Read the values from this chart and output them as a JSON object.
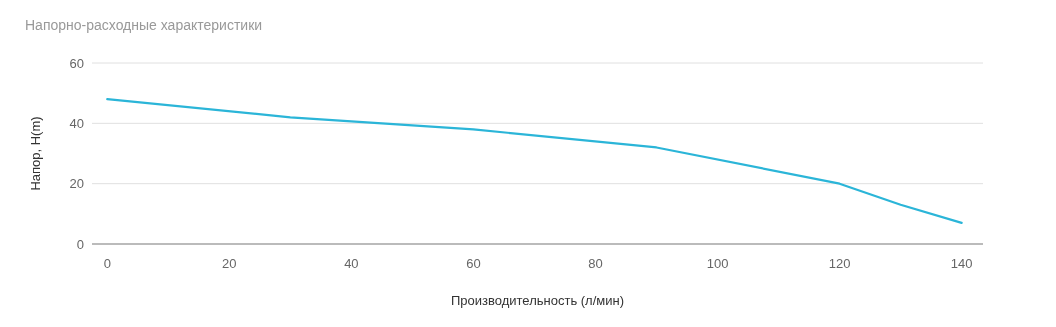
{
  "chart_data": {
    "type": "line",
    "title": "Напорно-расходные характеристики",
    "xlabel": "Производительность (л/мин)",
    "ylabel": "Напор, H(m)",
    "x": [
      0,
      30,
      60,
      90,
      120,
      130,
      140
    ],
    "series": [
      {
        "color": "#2bb5d8",
        "values": [
          48,
          42,
          38,
          32,
          20,
          13,
          7
        ]
      }
    ],
    "xlim": [
      -2.5,
      143.5
    ],
    "xticks": [
      0,
      20,
      40,
      60,
      80,
      100,
      120,
      140
    ],
    "ylim": [
      0,
      60
    ],
    "yticks": [
      0,
      20,
      40,
      60
    ],
    "grid": "y",
    "marker": "none",
    "line_style": "solid"
  }
}
